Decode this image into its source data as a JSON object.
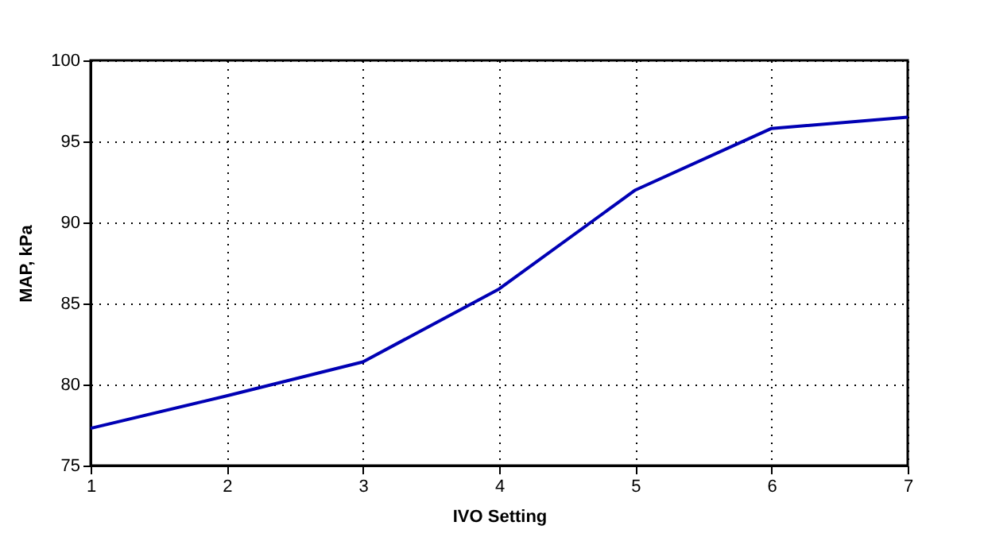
{
  "chart_data": {
    "type": "line",
    "xlabel": "IVO Setting",
    "ylabel": "MAP, kPa",
    "x": [
      1,
      2,
      3,
      4,
      5,
      6,
      7
    ],
    "series": [
      {
        "color": "#0000b4",
        "values": [
          77.3,
          79.3,
          81.4,
          85.9,
          92.0,
          95.8,
          96.5
        ]
      }
    ],
    "xlim": [
      1,
      7
    ],
    "xticks": [
      1,
      2,
      3,
      4,
      5,
      6,
      7
    ],
    "ylim": [
      75,
      100
    ],
    "yticks": [
      75,
      80,
      85,
      90,
      95,
      100
    ],
    "grid": true,
    "line_style": "solid",
    "marker": "none"
  }
}
